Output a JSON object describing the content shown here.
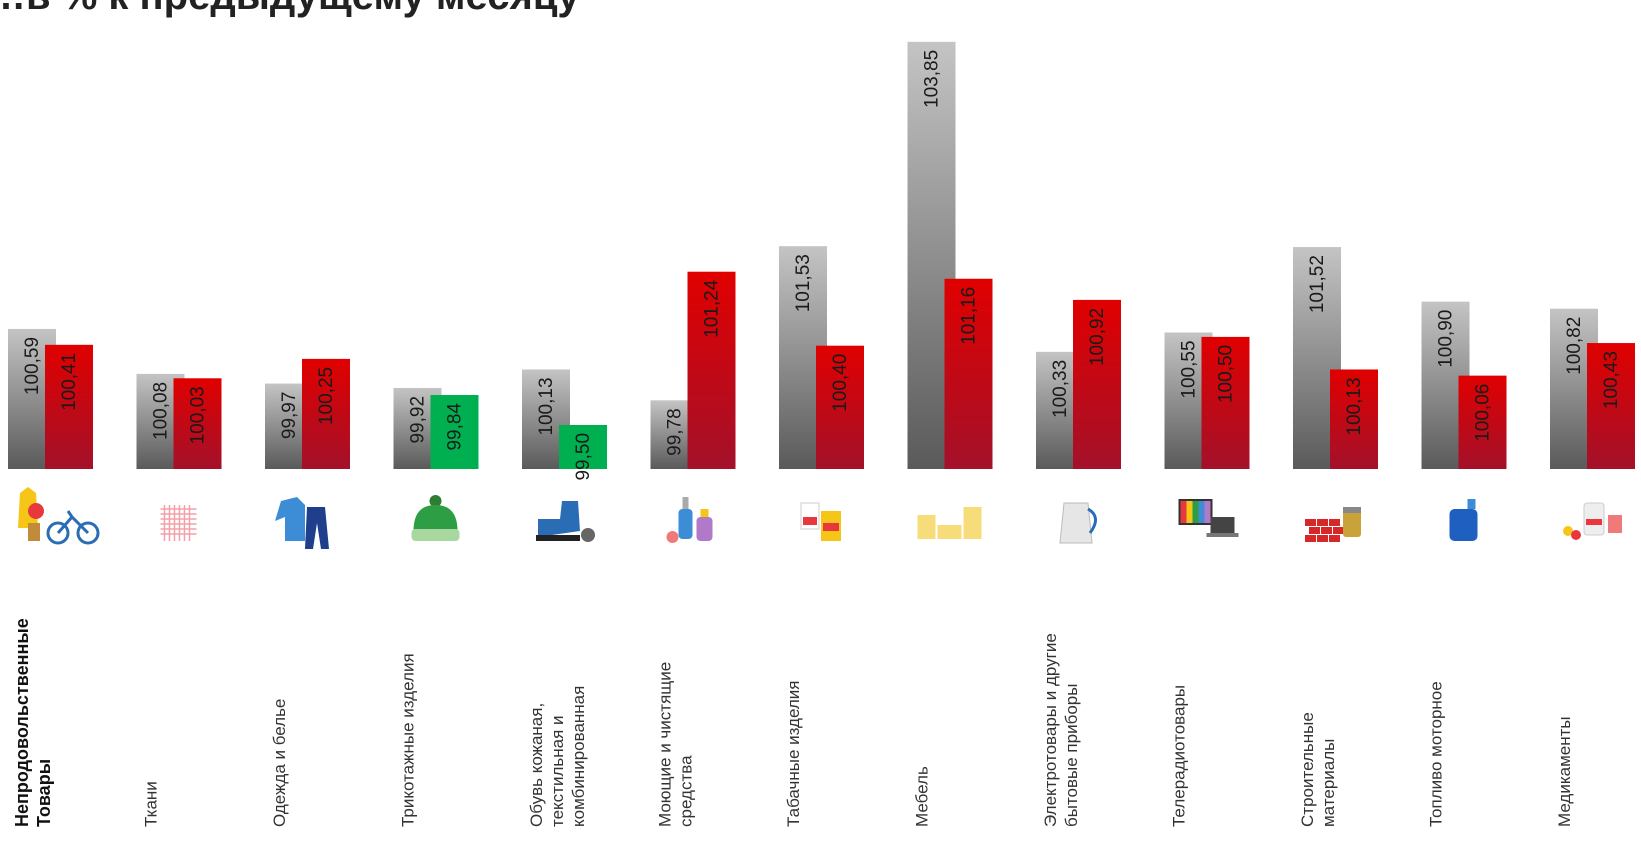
{
  "chart_data": {
    "type": "bar",
    "title": "…в % к предыдущему месяцу",
    "ylim": [
      99.0,
      104.2
    ],
    "categories": [
      [
        "Непродовольственные",
        "Товары"
      ],
      [
        "Ткани"
      ],
      [
        "Одежда и белье"
      ],
      [
        "Трикотажные  изделия"
      ],
      [
        "Обувь кожаная,",
        "текстильная  и",
        "комбинированная"
      ],
      [
        "Моющие и чистящие",
        "средства"
      ],
      [
        "Табачные  изделия"
      ],
      [
        "Мебель"
      ],
      [
        "Электротовары  и другие",
        "бытовые  приборы"
      ],
      [
        "Телерадиотовары"
      ],
      [
        "Строительные",
        "материалы"
      ],
      [
        "Топливо  моторное"
      ],
      [
        "Медикаменты"
      ]
    ],
    "series": [
      {
        "values": [
          100.59,
          100.08,
          99.97,
          99.92,
          100.13,
          99.78,
          101.53,
          103.85,
          100.33,
          100.55,
          101.52,
          100.9,
          100.82
        ],
        "labels": [
          "100,59",
          "100,08",
          "99,97",
          "99,92",
          "100,13",
          "99,78",
          "101,53",
          "103,85",
          "100,33",
          "100,55",
          "101,52",
          "100,90",
          "100,82"
        ]
      },
      {
        "values": [
          100.41,
          100.03,
          100.25,
          99.84,
          99.5,
          101.24,
          100.4,
          101.16,
          100.92,
          100.5,
          100.13,
          100.06,
          100.43
        ],
        "labels": [
          "100,41",
          "100,03",
          "100,25",
          "99,84",
          "99,50",
          "101,24",
          "100,40",
          "101,16",
          "100,92",
          "100,50",
          "100,13",
          "100,06",
          "100,43"
        ]
      }
    ],
    "colors": {
      "gray_top": "#c4c4c4",
      "gray_bottom": "#5a5a5a",
      "red_top": "#e00000",
      "red_bottom": "#a3112a",
      "green": "#00b050"
    },
    "icons": [
      "clothes-chair-bicycle-icon",
      "fabric-icon",
      "sweater-trousers-icon",
      "knit-hat-icon",
      "boot-icon",
      "detergent-bottles-icon",
      "cigarette-packs-icon",
      "furniture-icon",
      "electric-kettle-icon",
      "tv-laptop-icon",
      "bricks-paint-icon",
      "fuel-canister-icon",
      "medicine-icon"
    ]
  }
}
